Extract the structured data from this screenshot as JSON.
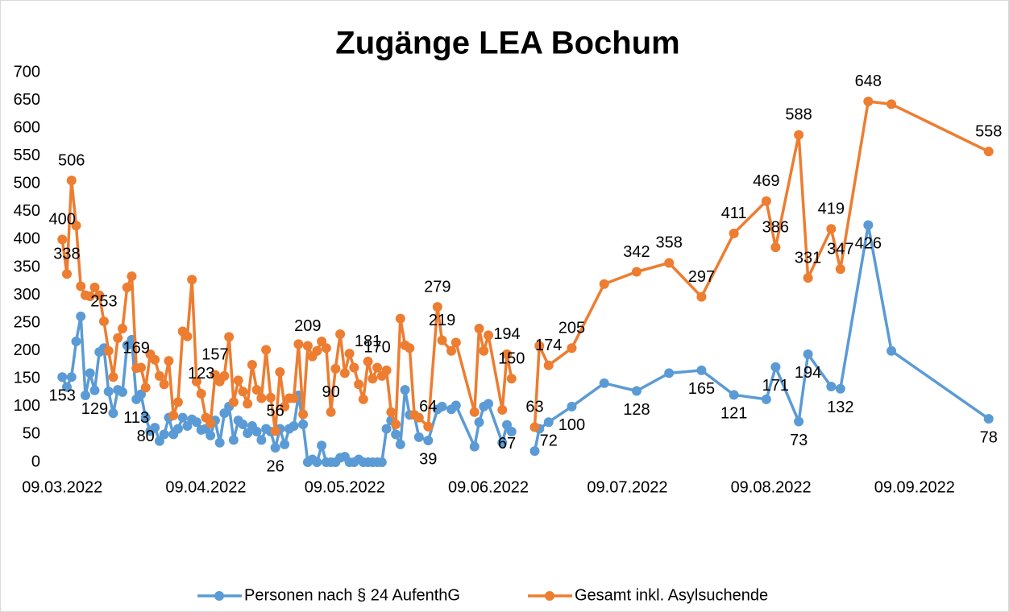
{
  "chart_data": {
    "type": "line",
    "title": "Zugänge LEA Bochum",
    "x": [
      "09.03.2022",
      "10.03.2022",
      "11.03.2022",
      "12.03.2022",
      "13.03.2022",
      "14.03.2022",
      "15.03.2022",
      "16.03.2022",
      "17.03.2022",
      "18.03.2022",
      "19.03.2022",
      "20.03.2022",
      "21.03.2022",
      "22.03.2022",
      "23.03.2022",
      "24.03.2022",
      "25.03.2022",
      "26.03.2022",
      "27.03.2022",
      "28.03.2022",
      "29.03.2022",
      "30.03.2022",
      "31.03.2022",
      "01.04.2022",
      "02.04.2022",
      "03.04.2022",
      "04.04.2022",
      "05.04.2022",
      "06.04.2022",
      "07.04.2022",
      "08.04.2022",
      "09.04.2022",
      "10.04.2022",
      "11.04.2022",
      "12.04.2022",
      "13.04.2022",
      "14.04.2022",
      "15.04.2022",
      "16.04.2022",
      "17.04.2022",
      "18.04.2022",
      "19.04.2022",
      "20.04.2022",
      "21.04.2022",
      "22.04.2022",
      "23.04.2022",
      "24.04.2022",
      "25.04.2022",
      "26.04.2022",
      "27.04.2022",
      "28.04.2022",
      "29.04.2022",
      "30.04.2022",
      "01.05.2022",
      "02.05.2022",
      "03.05.2022",
      "04.05.2022",
      "05.05.2022",
      "06.05.2022",
      "07.05.2022",
      "08.05.2022",
      "09.05.2022",
      "10.05.2022",
      "11.05.2022",
      "12.05.2022",
      "13.05.2022",
      "14.05.2022",
      "15.05.2022",
      "16.05.2022",
      "17.05.2022",
      "18.05.2022",
      "19.05.2022",
      "20.05.2022",
      "21.05.2022",
      "22.05.2022",
      "23.05.2022",
      "24.05.2022",
      "25.05.2022",
      "27.05.2022",
      "29.05.2022",
      "30.05.2022",
      "01.06.2022",
      "02.06.2022",
      "06.06.2022",
      "07.06.2022",
      "08.06.2022",
      "09.06.2022",
      "12.06.2022",
      "13.06.2022",
      "14.06.2022",
      "16.06.2022",
      "19.06.2022",
      "20.06.2022",
      "22.06.2022",
      "27.06.2022",
      "04.07.2022",
      "11.07.2022",
      "18.07.2022",
      "25.07.2022",
      "01.08.2022",
      "08.08.2022",
      "10.08.2022",
      "15.08.2022",
      "17.08.2022",
      "22.08.2022",
      "24.08.2022",
      "30.08.2022",
      "04.09.2022",
      "25.09.2022"
    ],
    "xlim": [
      "06.03.2022",
      "28.09.2022"
    ],
    "xticks": [
      "09.03.2022",
      "09.04.2022",
      "09.05.2022",
      "09.06.2022",
      "09.07.2022",
      "09.08.2022",
      "09.09.2022"
    ],
    "ylim": [
      0,
      700
    ],
    "yticks": [
      0,
      50,
      100,
      150,
      200,
      250,
      300,
      350,
      400,
      450,
      500,
      550,
      600,
      650,
      700
    ],
    "grid": false,
    "legend": "bottom",
    "series": [
      {
        "name": "Personen nach § 24 AufenthG",
        "color": "#5b9bd5",
        "values": [
          153,
          135,
          153,
          217,
          262,
          120,
          160,
          129,
          198,
          205,
          127,
          88,
          130,
          126,
          210,
          220,
          113,
          122,
          80,
          56,
          62,
          38,
          50,
          80,
          50,
          60,
          80,
          65,
          77,
          72,
          58,
          60,
          48,
          75,
          35,
          88,
          100,
          40,
          75,
          68,
          52,
          65,
          55,
          40,
          60,
          55,
          26,
          60,
          32,
          60,
          65,
          120,
          68,
          0,
          5,
          0,
          30,
          0,
          0,
          0,
          8,
          10,
          0,
          0,
          5,
          0,
          0,
          0,
          0,
          0,
          60,
          75,
          50,
          32,
          130,
          85,
          85,
          45,
          39,
          95,
          100,
          95,
          102,
          28,
          72,
          100,
          105,
          35,
          67,
          55,
          null,
          20,
          60,
          72,
          100,
          142,
          128,
          160,
          165,
          121,
          113,
          171,
          73,
          194,
          136,
          132,
          426,
          200,
          78
        ],
        "value_labels": [
          "153",
          null,
          null,
          null,
          null,
          null,
          null,
          "129",
          null,
          null,
          null,
          null,
          null,
          null,
          null,
          null,
          "113",
          null,
          "80",
          null,
          null,
          null,
          null,
          null,
          null,
          null,
          null,
          null,
          null,
          null,
          null,
          null,
          null,
          null,
          null,
          null,
          null,
          null,
          null,
          null,
          null,
          null,
          null,
          null,
          null,
          null,
          "26",
          null,
          null,
          null,
          null,
          null,
          null,
          null,
          null,
          null,
          null,
          null,
          null,
          null,
          null,
          null,
          null,
          null,
          null,
          null,
          null,
          null,
          null,
          null,
          null,
          null,
          null,
          null,
          null,
          null,
          null,
          null,
          "39",
          null,
          null,
          null,
          null,
          null,
          null,
          null,
          null,
          null,
          "67",
          null,
          null,
          null,
          null,
          "72",
          "100",
          null,
          "128",
          null,
          "165",
          "121",
          null,
          "171",
          "73",
          "194",
          null,
          "132",
          "426",
          null,
          "78"
        ]
      },
      {
        "name": "Gesamt inkl. Asylsuchende",
        "color": "#ed7d31",
        "values": [
          400,
          338,
          506,
          425,
          316,
          300,
          298,
          314,
          300,
          253,
          200,
          153,
          223,
          240,
          314,
          334,
          169,
          170,
          134,
          194,
          184,
          155,
          140,
          182,
          84,
          108,
          235,
          226,
          328,
          145,
          123,
          80,
          70,
          157,
          145,
          155,
          225,
          108,
          147,
          127,
          105,
          175,
          130,
          115,
          202,
          116,
          56,
          162,
          100,
          115,
          115,
          212,
          86,
          209,
          190,
          200,
          217,
          205,
          90,
          168,
          230,
          160,
          195,
          170,
          140,
          113,
          181,
          150,
          170,
          155,
          165,
          90,
          68,
          258,
          210,
          205,
          85,
          80,
          64,
          279,
          219,
          200,
          215,
          90,
          240,
          200,
          228,
          94,
          194,
          150,
          null,
          63,
          209,
          174,
          205,
          320,
          342,
          358,
          297,
          411,
          469,
          386,
          588,
          331,
          419,
          347,
          648,
          643,
          558
        ],
        "value_labels": [
          "400",
          "338",
          "506",
          null,
          null,
          null,
          null,
          null,
          null,
          "253",
          null,
          null,
          null,
          null,
          null,
          null,
          "169",
          null,
          null,
          null,
          null,
          null,
          null,
          null,
          null,
          null,
          null,
          null,
          null,
          null,
          "123",
          null,
          null,
          "157",
          null,
          null,
          null,
          null,
          null,
          null,
          null,
          null,
          null,
          null,
          null,
          null,
          "56",
          null,
          null,
          null,
          null,
          null,
          null,
          "209",
          null,
          null,
          null,
          null,
          "90",
          null,
          null,
          null,
          null,
          null,
          null,
          null,
          "181",
          null,
          "170",
          null,
          null,
          null,
          null,
          null,
          null,
          null,
          null,
          null,
          "64",
          "279",
          "219",
          null,
          null,
          null,
          null,
          null,
          null,
          null,
          "194",
          "150",
          null,
          "63",
          null,
          "174",
          "205",
          null,
          "342",
          "358",
          "297",
          "411",
          "469",
          "386",
          "588",
          "331",
          "419",
          "347",
          "648",
          null,
          "558"
        ]
      }
    ]
  }
}
